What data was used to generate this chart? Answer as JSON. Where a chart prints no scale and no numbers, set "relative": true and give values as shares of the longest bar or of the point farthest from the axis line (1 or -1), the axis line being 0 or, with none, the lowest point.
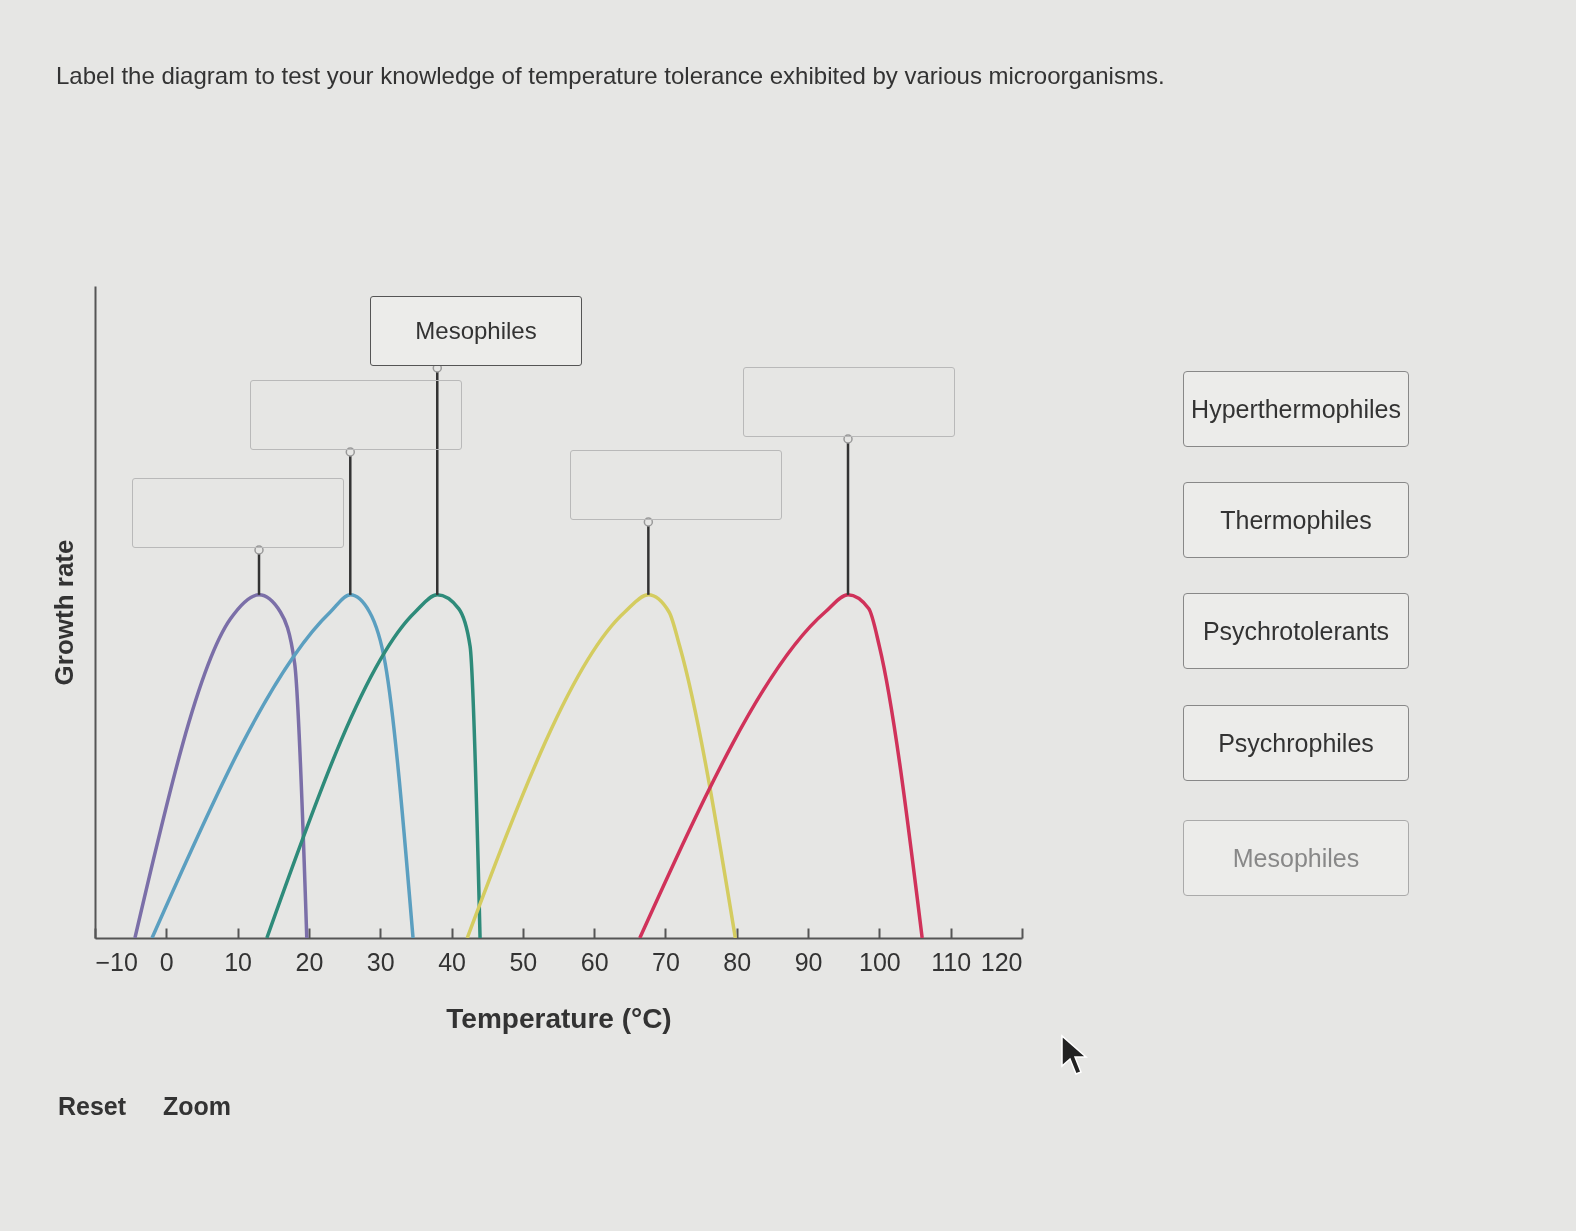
{
  "chart_data": {
    "type": "line",
    "title": "Label the diagram to test your knowledge of temperature tolerance exhibited by various microorganisms.",
    "xlabel": "Temperature (°C)",
    "ylabel": "Growth rate",
    "relative": true,
    "xlim": [
      -10,
      120
    ],
    "xticks": [
      -10,
      0,
      10,
      20,
      30,
      40,
      50,
      60,
      70,
      80,
      90,
      100,
      110,
      120
    ],
    "tick_labels": "x",
    "grid": false,
    "legend": false,
    "marker": "none",
    "series": [
      {
        "color": "#7b6fa8",
        "x": [
          -4.4,
          9,
          13,
          16,
          18,
          19.7
        ],
        "values": [
          0,
          0.93,
          1,
          0.95,
          0.8,
          0
        ]
      },
      {
        "color": "#5b9fc0",
        "x": [
          -2,
          23,
          25.8,
          28.5,
          30.7,
          34.6
        ],
        "values": [
          0,
          0.95,
          1,
          0.95,
          0.8,
          0
        ]
      },
      {
        "color": "#2e8b7a",
        "x": [
          14.1,
          34.9,
          38,
          41,
          42.6,
          44
        ],
        "values": [
          0,
          0.95,
          1,
          0.96,
          0.85,
          0
        ]
      },
      {
        "color": "#d4cc60",
        "x": [
          42.2,
          64.3,
          67.6,
          70.5,
          72,
          79.8
        ],
        "values": [
          0,
          0.95,
          1,
          0.95,
          0.85,
          0
        ]
      },
      {
        "color": "#d0325a",
        "x": [
          66.4,
          92.4,
          95.6,
          98.5,
          100,
          106
        ],
        "values": [
          0,
          0.95,
          1,
          0.96,
          0.85,
          0
        ]
      }
    ],
    "annotations": [
      {
        "text": "Mesophiles",
        "x": 38,
        "y": 1
      },
      "Hyperthermophiles",
      "Thermophiles",
      "Psychrotolerants",
      "Psychrophiles",
      "Mesophiles",
      "Reset",
      "Zoom"
    ]
  }
}
